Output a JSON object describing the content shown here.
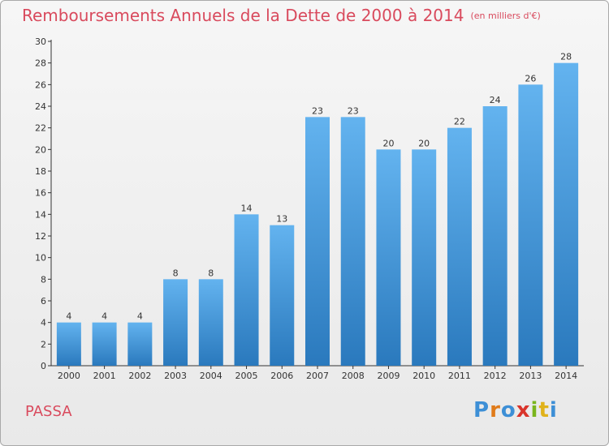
{
  "chart_data": {
    "type": "bar",
    "title": "Remboursements Annuels de la Dette de 2000 à 2014",
    "subtitle": "(en milliers d'€)",
    "categories": [
      "2000",
      "2001",
      "2002",
      "2003",
      "2004",
      "2005",
      "2006",
      "2007",
      "2008",
      "2009",
      "2010",
      "2011",
      "2012",
      "2013",
      "2014"
    ],
    "values": [
      4,
      4,
      4,
      8,
      8,
      14,
      13,
      23,
      23,
      20,
      20,
      22,
      24,
      26,
      28
    ],
    "ylim": [
      0,
      30
    ],
    "yticks": [
      0,
      2,
      4,
      6,
      8,
      10,
      12,
      14,
      16,
      18,
      20,
      22,
      24,
      26,
      28,
      30
    ],
    "xlabel": "",
    "ylabel": "",
    "grid": false,
    "legend": "none",
    "bar_color": "#3d94d6"
  },
  "commune": "PASSA",
  "logo": {
    "text": "Proxiti",
    "letter_colors": [
      "#3d8fd6",
      "#e07b1a",
      "#3d8fd6",
      "#d9342b",
      "#7ab51d",
      "#e0b21a",
      "#3d8fd6"
    ]
  },
  "colors": {
    "accent": "#d94a5d",
    "axis": "#333333"
  }
}
